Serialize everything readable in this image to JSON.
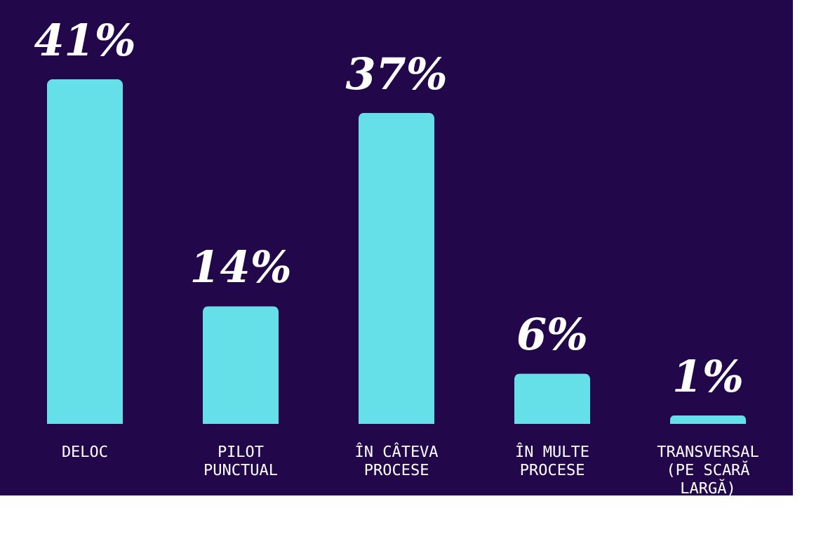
{
  "chart_data": {
    "type": "bar",
    "categories": [
      "DELOC",
      "PILOT PUNCTUAL",
      "ÎN CÂTEVA PROCESE",
      "ÎN MULTE PROCESE",
      "TRANSVERSAL (PE SCARĂ LARGĂ)"
    ],
    "values": [
      41,
      14,
      37,
      6,
      1
    ],
    "value_labels": [
      "41%",
      "14%",
      "37%",
      "6%",
      "1%"
    ],
    "color": "#66e0e8",
    "grid": false
  }
}
